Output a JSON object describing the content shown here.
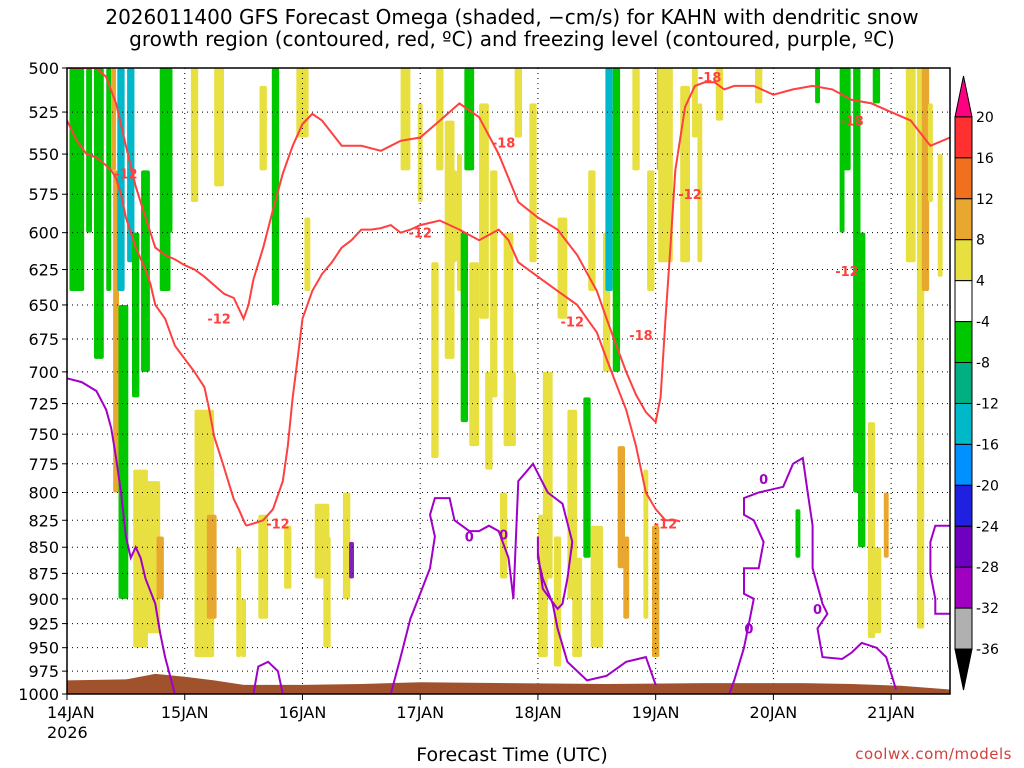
{
  "title_lines": [
    "2026011400 GFS Forecast Omega (shaded, −cm/s) for KAHN with dendritic snow",
    "growth region (contoured, red, ºC) and freezing level (contoured, purple, ºC)"
  ],
  "credit": "coolwx.com/models",
  "chart_data": {
    "type": "heatmap",
    "xlabel": "Forecast Time (UTC)",
    "x_start_date": "14JAN 2026",
    "x_tick_labels": [
      "14JAN",
      "15JAN",
      "16JAN",
      "17JAN",
      "18JAN",
      "19JAN",
      "20JAN",
      "21JAN"
    ],
    "x_tick_hours": [
      0,
      24,
      48,
      72,
      96,
      120,
      144,
      168
    ],
    "x_sub_label": "2026",
    "xlim_hours": [
      0,
      180
    ],
    "y_tick_labels": [
      "500",
      "525",
      "550",
      "575",
      "600",
      "625",
      "650",
      "675",
      "700",
      "725",
      "750",
      "775",
      "800",
      "825",
      "850",
      "875",
      "900",
      "925",
      "950",
      "975",
      "1000"
    ],
    "ylim": [
      1000,
      500
    ],
    "y_scale": "log-pressure",
    "grid": "dotted",
    "colorbar": {
      "labels": [
        "20",
        "16",
        "12",
        "8",
        "4",
        "-4",
        "-8",
        "-12",
        "-16",
        "-20",
        "-24",
        "-28",
        "-32",
        "-36"
      ],
      "colors": [
        "#ff0080",
        "#ff3030",
        "#f07020",
        "#e8a830",
        "#e8e040",
        "#ffffff",
        "#00c800",
        "#00b080",
        "#00b8c8",
        "#0090ff",
        "#2020e0",
        "#7000c0",
        "#a000c0",
        "#b0b0b0",
        "#000000"
      ]
    },
    "colors": {
      "dgz": "#ff4040",
      "freezing": "#a000c8",
      "terrain": "#a0522d",
      "green": "#00c800",
      "yellow": "#e8e040",
      "orange": "#e8a830",
      "teal": "#00b8c8"
    },
    "dgz_contour_labels": [
      "-12",
      "-18"
    ],
    "freezing_contour_label": "0",
    "series": [
      {
        "name": "-12",
        "x_hours": [
          0,
          2,
          4,
          6,
          8,
          9,
          10,
          11,
          12,
          14,
          16,
          17,
          18,
          20,
          22,
          24,
          26,
          28,
          29,
          30,
          32,
          33,
          34,
          35,
          36,
          36.5
        ],
        "y_hpa": [
          530,
          542,
          550,
          552,
          557,
          560,
          565,
          575,
          590,
          610,
          625,
          635,
          650,
          660,
          680,
          690,
          700,
          712,
          730,
          752,
          778,
          792,
          806,
          815,
          825,
          830
        ]
      },
      {
        "name": "-12",
        "x_hours": [
          36.5,
          38,
          40,
          42,
          44,
          45,
          46,
          47,
          48,
          50,
          52,
          54,
          56,
          58,
          60,
          62,
          64,
          66,
          68,
          70,
          72,
          76,
          80,
          84,
          88,
          90,
          92,
          96,
          100,
          104,
          106,
          108,
          110,
          112,
          114,
          116,
          118,
          120,
          122,
          124,
          125
        ],
        "y_hpa": [
          830,
          828,
          825,
          815,
          790,
          760,
          720,
          690,
          660,
          640,
          628,
          620,
          610,
          605,
          598,
          598,
          597,
          595,
          600,
          598,
          595,
          592,
          598,
          605,
          598,
          605,
          620,
          630,
          640,
          650,
          660,
          670,
          690,
          710,
          730,
          760,
          800,
          815,
          825,
          825,
          826
        ]
      },
      {
        "name": "-18",
        "x_hours": [
          0,
          2,
          4,
          6,
          8,
          10,
          12,
          14,
          16,
          18,
          20,
          22,
          24,
          26,
          28,
          30,
          32,
          34,
          36,
          37,
          38,
          40,
          42,
          44,
          46,
          48,
          50,
          52,
          56,
          60,
          64,
          68,
          72,
          76,
          80,
          84,
          88,
          92,
          96,
          100,
          104,
          108,
          110,
          112,
          114,
          116,
          118,
          120,
          121,
          122,
          123,
          124,
          126,
          128,
          130,
          132,
          134,
          136,
          138,
          140,
          144,
          148,
          152,
          156,
          160,
          164,
          168,
          172,
          176,
          180
        ],
        "y_hpa": [
          500,
          500,
          500,
          500,
          505,
          520,
          545,
          570,
          590,
          610,
          615,
          618,
          622,
          625,
          630,
          636,
          642,
          645,
          660,
          650,
          632,
          610,
          585,
          562,
          545,
          532,
          526,
          530,
          545,
          545,
          548,
          542,
          540,
          530,
          520,
          528,
          550,
          580,
          590,
          598,
          615,
          640,
          660,
          680,
          700,
          718,
          732,
          740,
          720,
          660,
          610,
          560,
          522,
          510,
          508,
          508,
          512,
          510,
          510,
          510,
          515,
          512,
          510,
          512,
          518,
          520,
          525,
          530,
          545,
          540
        ]
      }
    ]
  }
}
